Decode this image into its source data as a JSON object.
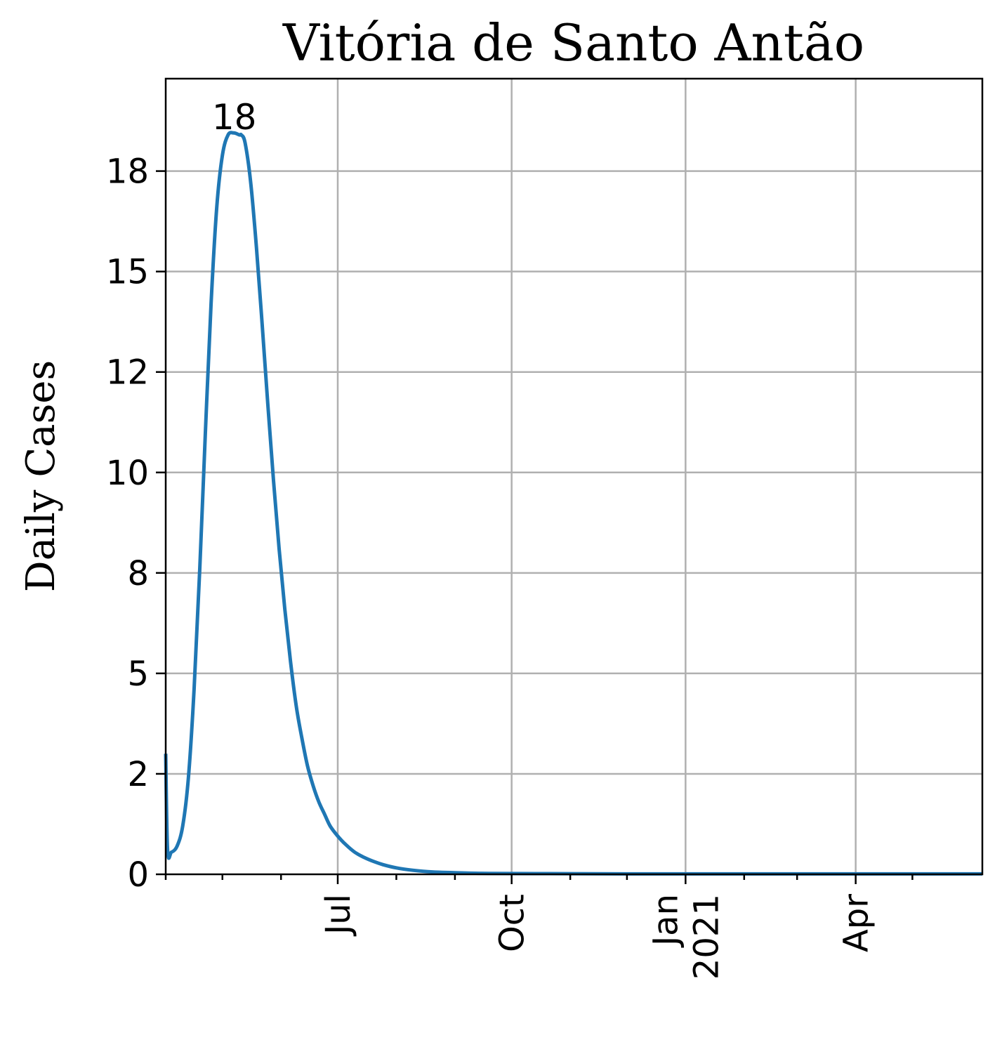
{
  "chart_data": {
    "type": "line",
    "title": "Vitória de Santo Antão",
    "xlabel": "",
    "ylabel": "Daily Cases",
    "x_start": "2020-04-01",
    "x_end": "2021-06-07",
    "ylim": [
      0,
      19.8
    ],
    "grid": true,
    "legend": "none",
    "line_color": "#1f77b4",
    "y_ticks": [
      {
        "value": 0,
        "label": "0"
      },
      {
        "value": 2.5,
        "label": "2"
      },
      {
        "value": 5,
        "label": "5"
      },
      {
        "value": 7.5,
        "label": "8"
      },
      {
        "value": 10,
        "label": "10"
      },
      {
        "value": 12.5,
        "label": "12"
      },
      {
        "value": 15,
        "label": "15"
      },
      {
        "value": 17.5,
        "label": "18"
      }
    ],
    "x_major_ticks": [
      {
        "date": "2020-07-01",
        "lines": [
          "Jul"
        ]
      },
      {
        "date": "2020-10-01",
        "lines": [
          "Oct"
        ]
      },
      {
        "date": "2021-01-01",
        "lines": [
          "Jan",
          "2021"
        ]
      },
      {
        "date": "2021-04-01",
        "lines": [
          "Apr"
        ]
      }
    ],
    "x_minor_ticks": [
      "2020-04-01",
      "2020-05-01",
      "2020-06-01",
      "2020-08-01",
      "2020-09-01",
      "2020-11-01",
      "2020-12-01",
      "2021-02-01",
      "2021-03-01",
      "2021-05-01"
    ],
    "annotations": [
      {
        "text": "18",
        "date": "2020-05-11",
        "value": 18.4
      }
    ],
    "series": [
      {
        "x": [
          "2020-04-01",
          "2020-04-02",
          "2020-04-04",
          "2020-04-07",
          "2020-04-10",
          "2020-04-13",
          "2020-04-16",
          "2020-04-19",
          "2020-04-22",
          "2020-04-25",
          "2020-04-28",
          "2020-05-01",
          "2020-05-04",
          "2020-05-07",
          "2020-05-10",
          "2020-05-11",
          "2020-05-13",
          "2020-05-16",
          "2020-05-19",
          "2020-05-22",
          "2020-05-25",
          "2020-05-28",
          "2020-05-31",
          "2020-06-03",
          "2020-06-06",
          "2020-06-09",
          "2020-06-12",
          "2020-06-15",
          "2020-06-18",
          "2020-06-21",
          "2020-06-24",
          "2020-06-27",
          "2020-07-01",
          "2020-07-05",
          "2020-07-10",
          "2020-07-15",
          "2020-07-20",
          "2020-07-25",
          "2020-08-01",
          "2020-08-10",
          "2020-08-20",
          "2020-09-01",
          "2020-09-15",
          "2020-10-01",
          "2020-11-01",
          "2020-12-01",
          "2021-01-01",
          "2021-02-01",
          "2021-03-01",
          "2021-04-01",
          "2021-05-01",
          "2021-06-07"
        ],
        "values": [
          3.0,
          0.6,
          0.55,
          0.7,
          1.2,
          2.4,
          4.6,
          7.6,
          11.0,
          14.2,
          16.6,
          17.9,
          18.4,
          18.45,
          18.4,
          18.4,
          18.2,
          17.2,
          15.6,
          13.7,
          11.7,
          9.8,
          8.1,
          6.6,
          5.3,
          4.2,
          3.4,
          2.7,
          2.2,
          1.8,
          1.5,
          1.2,
          0.95,
          0.75,
          0.55,
          0.42,
          0.32,
          0.24,
          0.16,
          0.1,
          0.06,
          0.04,
          0.025,
          0.02,
          0.015,
          0.01,
          0.01,
          0.01,
          0.01,
          0.01,
          0.01,
          0.01
        ]
      }
    ]
  }
}
